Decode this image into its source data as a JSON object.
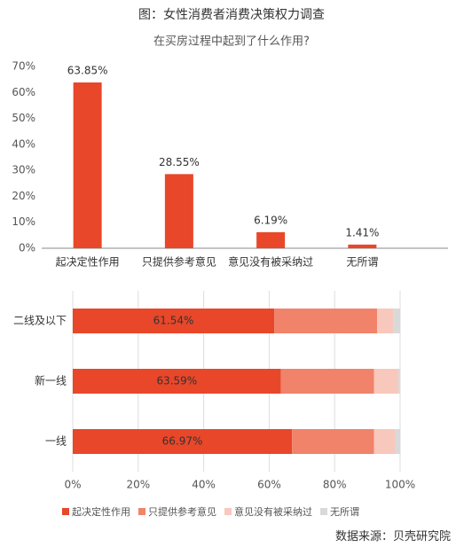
{
  "source": "数据来源：贝壳研究院",
  "chart_data": [
    {
      "type": "bar",
      "title": "图：女性消费者消费决策权力调查",
      "subtitle": "在买房过程中起到了什么作用?",
      "categories": [
        "起决定性作用",
        "只提供参考意见",
        "意见没有被采纳过",
        "无所谓"
      ],
      "values": [
        63.85,
        28.55,
        6.19,
        1.41
      ],
      "value_labels": [
        "63.85%",
        "28.55%",
        "6.19%",
        "1.41%"
      ],
      "color": "#e8472a",
      "ylim": [
        0,
        70
      ],
      "yticks": [
        {
          "value": 0,
          "label": "0%"
        },
        {
          "value": 10,
          "label": "10%"
        },
        {
          "value": 20,
          "label": "20%"
        },
        {
          "value": 30,
          "label": "30%"
        },
        {
          "value": 40,
          "label": "40%"
        },
        {
          "value": 50,
          "label": "50%"
        },
        {
          "value": 60,
          "label": "60%"
        },
        {
          "value": 70,
          "label": "70%"
        }
      ],
      "grid": false
    },
    {
      "type": "stacked_barh",
      "categories": [
        "二线及以下",
        "新一线",
        "一线"
      ],
      "series": [
        {
          "name": "起决定性作用",
          "color": "#e8472a",
          "values": [
            61.54,
            63.59,
            66.97
          ],
          "value_labels": [
            "61.54%",
            "63.59%",
            "66.97%"
          ]
        },
        {
          "name": "只提供参考意见",
          "color": "#f0836a",
          "values": [
            31.46,
            28.41,
            25.03
          ]
        },
        {
          "name": "意见没有被采纳过",
          "color": "#f8c8bc",
          "values": [
            5,
            7.5,
            6.5
          ]
        },
        {
          "name": "无所谓",
          "color": "#d9d9d9",
          "values": [
            2,
            0.5,
            1.5
          ]
        }
      ],
      "xlim": [
        0,
        100
      ],
      "xticks": [
        {
          "value": 0,
          "label": "0%"
        },
        {
          "value": 20,
          "label": "20%"
        },
        {
          "value": 40,
          "label": "40%"
        },
        {
          "value": 60,
          "label": "60%"
        },
        {
          "value": 80,
          "label": "80%"
        },
        {
          "value": 100,
          "label": "100%"
        }
      ],
      "grid": true,
      "legend": "bottom"
    }
  ]
}
